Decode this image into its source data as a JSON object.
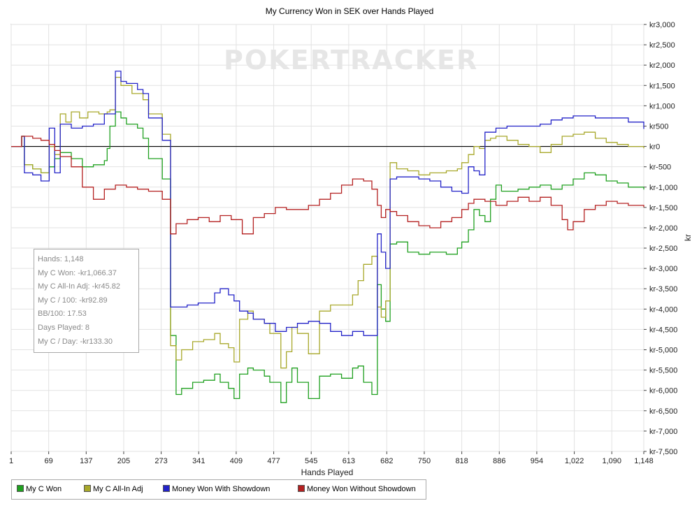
{
  "chart_data": {
    "type": "line",
    "title": "My Currency Won in SEK over Hands Played",
    "xlabel": "Hands Played",
    "ylabel": "kr",
    "xlim": [
      1,
      1148
    ],
    "ylim": [
      -7500,
      3000
    ],
    "x_ticks": [
      "1",
      "69",
      "137",
      "205",
      "273",
      "341",
      "409",
      "477",
      "545",
      "613",
      "682",
      "750",
      "818",
      "886",
      "954",
      "1,022",
      "1,090",
      "1,148"
    ],
    "y_ticks": [
      "kr3,000",
      "kr2,500",
      "kr2,000",
      "kr1,500",
      "kr1,000",
      "kr500",
      "kr0",
      "kr-500",
      "kr-1,000",
      "kr-1,500",
      "kr-2,000",
      "kr-2,500",
      "kr-3,000",
      "kr-3,500",
      "kr-4,000",
      "kr-4,500",
      "kr-5,000",
      "kr-5,500",
      "kr-6,000",
      "kr-6,500",
      "kr-7,000",
      "kr-7,500"
    ],
    "y_tick_values": [
      3000,
      2500,
      2000,
      1500,
      1000,
      500,
      0,
      -500,
      -1000,
      -1500,
      -2000,
      -2500,
      -3000,
      -3500,
      -4000,
      -4500,
      -5000,
      -5500,
      -6000,
      -6500,
      -7000,
      -7500
    ],
    "x_tick_values": [
      1,
      69,
      137,
      205,
      273,
      341,
      409,
      477,
      545,
      613,
      682,
      750,
      818,
      886,
      954,
      1022,
      1090,
      1148
    ],
    "grid": true,
    "legend_position": "bottom-left",
    "watermark": "POKERTRACKER",
    "series": [
      {
        "name": "My C Won",
        "color": "#1fa01f",
        "points": [
          [
            1,
            0
          ],
          [
            20,
            250
          ],
          [
            25,
            -450
          ],
          [
            40,
            -550
          ],
          [
            55,
            -650
          ],
          [
            70,
            -500
          ],
          [
            80,
            -300
          ],
          [
            90,
            -150
          ],
          [
            110,
            -300
          ],
          [
            130,
            -500
          ],
          [
            150,
            -450
          ],
          [
            170,
            -350
          ],
          [
            175,
            -50
          ],
          [
            180,
            500
          ],
          [
            190,
            850
          ],
          [
            200,
            700
          ],
          [
            210,
            550
          ],
          [
            230,
            450
          ],
          [
            240,
            200
          ],
          [
            250,
            -300
          ],
          [
            275,
            -800
          ],
          [
            290,
            -4650
          ],
          [
            300,
            -6100
          ],
          [
            310,
            -5950
          ],
          [
            330,
            -5800
          ],
          [
            350,
            -5750
          ],
          [
            370,
            -5600
          ],
          [
            380,
            -5800
          ],
          [
            395,
            -5950
          ],
          [
            405,
            -6200
          ],
          [
            415,
            -5600
          ],
          [
            430,
            -5450
          ],
          [
            440,
            -5500
          ],
          [
            460,
            -5650
          ],
          [
            470,
            -5800
          ],
          [
            490,
            -6300
          ],
          [
            500,
            -5800
          ],
          [
            510,
            -5450
          ],
          [
            520,
            -5800
          ],
          [
            540,
            -6200
          ],
          [
            560,
            -5650
          ],
          [
            580,
            -5600
          ],
          [
            600,
            -5700
          ],
          [
            620,
            -5450
          ],
          [
            630,
            -5400
          ],
          [
            640,
            -5800
          ],
          [
            655,
            -6100
          ],
          [
            665,
            -3400
          ],
          [
            672,
            -4000
          ],
          [
            680,
            -4300
          ],
          [
            688,
            -2400
          ],
          [
            700,
            -2350
          ],
          [
            720,
            -2600
          ],
          [
            740,
            -2650
          ],
          [
            760,
            -2600
          ],
          [
            790,
            -2650
          ],
          [
            810,
            -2500
          ],
          [
            818,
            -2350
          ],
          [
            830,
            -2050
          ],
          [
            840,
            -1550
          ],
          [
            850,
            -1700
          ],
          [
            860,
            -1850
          ],
          [
            870,
            -1300
          ],
          [
            880,
            -950
          ],
          [
            890,
            -1100
          ],
          [
            920,
            -1050
          ],
          [
            940,
            -1000
          ],
          [
            960,
            -950
          ],
          [
            980,
            -1050
          ],
          [
            1000,
            -950
          ],
          [
            1020,
            -800
          ],
          [
            1040,
            -650
          ],
          [
            1060,
            -700
          ],
          [
            1080,
            -850
          ],
          [
            1100,
            -900
          ],
          [
            1120,
            -1000
          ],
          [
            1148,
            -1060
          ]
        ]
      },
      {
        "name": "My C All-In Adj",
        "color": "#a8a82a",
        "points": [
          [
            1,
            0
          ],
          [
            20,
            250
          ],
          [
            25,
            -450
          ],
          [
            40,
            -550
          ],
          [
            55,
            -650
          ],
          [
            70,
            0
          ],
          [
            80,
            -200
          ],
          [
            90,
            800
          ],
          [
            100,
            600
          ],
          [
            110,
            850
          ],
          [
            125,
            700
          ],
          [
            140,
            850
          ],
          [
            160,
            800
          ],
          [
            175,
            850
          ],
          [
            180,
            900
          ],
          [
            190,
            1700
          ],
          [
            200,
            1500
          ],
          [
            220,
            1300
          ],
          [
            240,
            1150
          ],
          [
            250,
            800
          ],
          [
            275,
            300
          ],
          [
            290,
            -4900
          ],
          [
            300,
            -5250
          ],
          [
            310,
            -5000
          ],
          [
            330,
            -4800
          ],
          [
            350,
            -4750
          ],
          [
            370,
            -4600
          ],
          [
            380,
            -4850
          ],
          [
            395,
            -4950
          ],
          [
            405,
            -5300
          ],
          [
            415,
            -4250
          ],
          [
            430,
            -4050
          ],
          [
            440,
            -4250
          ],
          [
            460,
            -4350
          ],
          [
            470,
            -4600
          ],
          [
            490,
            -5450
          ],
          [
            500,
            -5050
          ],
          [
            510,
            -4450
          ],
          [
            520,
            -4600
          ],
          [
            540,
            -5100
          ],
          [
            560,
            -4050
          ],
          [
            580,
            -3900
          ],
          [
            600,
            -3900
          ],
          [
            620,
            -3650
          ],
          [
            630,
            -3300
          ],
          [
            640,
            -2900
          ],
          [
            655,
            -2700
          ],
          [
            665,
            -3950
          ],
          [
            672,
            -4200
          ],
          [
            680,
            -3800
          ],
          [
            688,
            -400
          ],
          [
            700,
            -550
          ],
          [
            720,
            -600
          ],
          [
            740,
            -700
          ],
          [
            760,
            -650
          ],
          [
            790,
            -600
          ],
          [
            810,
            -550
          ],
          [
            818,
            -400
          ],
          [
            830,
            -200
          ],
          [
            840,
            0
          ],
          [
            850,
            -50
          ],
          [
            860,
            150
          ],
          [
            870,
            200
          ],
          [
            880,
            250
          ],
          [
            900,
            150
          ],
          [
            920,
            50
          ],
          [
            940,
            0
          ],
          [
            960,
            -150
          ],
          [
            980,
            50
          ],
          [
            1000,
            250
          ],
          [
            1020,
            300
          ],
          [
            1040,
            350
          ],
          [
            1060,
            200
          ],
          [
            1080,
            100
          ],
          [
            1100,
            50
          ],
          [
            1120,
            0
          ],
          [
            1148,
            -46
          ]
        ]
      },
      {
        "name": "Money Won With Showdown",
        "color": "#2323c8",
        "points": [
          [
            1,
            0
          ],
          [
            20,
            250
          ],
          [
            25,
            -650
          ],
          [
            40,
            -700
          ],
          [
            55,
            -850
          ],
          [
            70,
            450
          ],
          [
            80,
            -650
          ],
          [
            90,
            550
          ],
          [
            110,
            450
          ],
          [
            130,
            500
          ],
          [
            150,
            550
          ],
          [
            170,
            800
          ],
          [
            190,
            1850
          ],
          [
            200,
            1600
          ],
          [
            210,
            1550
          ],
          [
            230,
            1400
          ],
          [
            240,
            1300
          ],
          [
            250,
            700
          ],
          [
            275,
            150
          ],
          [
            290,
            -3950
          ],
          [
            320,
            -3900
          ],
          [
            340,
            -3850
          ],
          [
            360,
            -3850
          ],
          [
            370,
            -3600
          ],
          [
            380,
            -3500
          ],
          [
            395,
            -3650
          ],
          [
            405,
            -3800
          ],
          [
            415,
            -4050
          ],
          [
            430,
            -4100
          ],
          [
            440,
            -4250
          ],
          [
            460,
            -4350
          ],
          [
            480,
            -4550
          ],
          [
            500,
            -4450
          ],
          [
            520,
            -4350
          ],
          [
            540,
            -4300
          ],
          [
            560,
            -4350
          ],
          [
            580,
            -4550
          ],
          [
            600,
            -4650
          ],
          [
            620,
            -4550
          ],
          [
            640,
            -4650
          ],
          [
            655,
            -4650
          ],
          [
            665,
            -2150
          ],
          [
            672,
            -2600
          ],
          [
            680,
            -3000
          ],
          [
            688,
            -800
          ],
          [
            700,
            -750
          ],
          [
            720,
            -750
          ],
          [
            740,
            -800
          ],
          [
            760,
            -850
          ],
          [
            780,
            -1000
          ],
          [
            800,
            -1100
          ],
          [
            818,
            -1150
          ],
          [
            830,
            -500
          ],
          [
            840,
            -600
          ],
          [
            850,
            -700
          ],
          [
            860,
            350
          ],
          [
            880,
            450
          ],
          [
            900,
            500
          ],
          [
            920,
            500
          ],
          [
            940,
            500
          ],
          [
            960,
            550
          ],
          [
            980,
            650
          ],
          [
            1000,
            700
          ],
          [
            1020,
            750
          ],
          [
            1040,
            750
          ],
          [
            1060,
            700
          ],
          [
            1080,
            700
          ],
          [
            1100,
            700
          ],
          [
            1120,
            600
          ],
          [
            1148,
            430
          ]
        ]
      },
      {
        "name": "Money Won Without Showdown",
        "color": "#b42020",
        "points": [
          [
            1,
            0
          ],
          [
            20,
            250
          ],
          [
            40,
            200
          ],
          [
            55,
            150
          ],
          [
            70,
            50
          ],
          [
            80,
            -100
          ],
          [
            90,
            -250
          ],
          [
            110,
            -500
          ],
          [
            130,
            -1000
          ],
          [
            150,
            -1300
          ],
          [
            170,
            -1050
          ],
          [
            190,
            -950
          ],
          [
            210,
            -1000
          ],
          [
            230,
            -1050
          ],
          [
            250,
            -1100
          ],
          [
            275,
            -1300
          ],
          [
            290,
            -2150
          ],
          [
            300,
            -1900
          ],
          [
            320,
            -1800
          ],
          [
            340,
            -1750
          ],
          [
            360,
            -1850
          ],
          [
            380,
            -1700
          ],
          [
            400,
            -1800
          ],
          [
            420,
            -2150
          ],
          [
            440,
            -1750
          ],
          [
            460,
            -1650
          ],
          [
            480,
            -1500
          ],
          [
            500,
            -1550
          ],
          [
            520,
            -1550
          ],
          [
            540,
            -1450
          ],
          [
            560,
            -1300
          ],
          [
            580,
            -1150
          ],
          [
            600,
            -950
          ],
          [
            620,
            -800
          ],
          [
            640,
            -850
          ],
          [
            655,
            -1050
          ],
          [
            665,
            -1450
          ],
          [
            672,
            -1750
          ],
          [
            680,
            -1550
          ],
          [
            688,
            -1600
          ],
          [
            700,
            -1700
          ],
          [
            720,
            -1850
          ],
          [
            740,
            -1950
          ],
          [
            760,
            -2000
          ],
          [
            780,
            -1850
          ],
          [
            800,
            -1750
          ],
          [
            818,
            -1550
          ],
          [
            830,
            -1400
          ],
          [
            840,
            -1300
          ],
          [
            860,
            -1350
          ],
          [
            880,
            -1450
          ],
          [
            900,
            -1350
          ],
          [
            920,
            -1250
          ],
          [
            940,
            -1350
          ],
          [
            960,
            -1250
          ],
          [
            980,
            -1450
          ],
          [
            1000,
            -1800
          ],
          [
            1010,
            -2050
          ],
          [
            1020,
            -1850
          ],
          [
            1040,
            -1550
          ],
          [
            1060,
            -1450
          ],
          [
            1080,
            -1350
          ],
          [
            1100,
            -1400
          ],
          [
            1120,
            -1450
          ],
          [
            1148,
            -1500
          ]
        ]
      }
    ]
  },
  "stats": {
    "hands": "Hands: 1,148",
    "won": "My C Won: -kr1,066.37",
    "allin_adj": "My C All-In Adj: -kr45.82",
    "per100": "My C / 100: -kr92.89",
    "bb100": "BB/100: 17.53",
    "days": "Days Played: 8",
    "per_day": "My C / Day: -kr133.30"
  },
  "legend": {
    "items": [
      {
        "label": "My C Won",
        "color": "#1fa01f"
      },
      {
        "label": "My C All-In Adj",
        "color": "#a8a82a"
      },
      {
        "label": "Money Won With Showdown",
        "color": "#2323c8"
      },
      {
        "label": "Money Won Without Showdown",
        "color": "#b42020"
      }
    ]
  }
}
